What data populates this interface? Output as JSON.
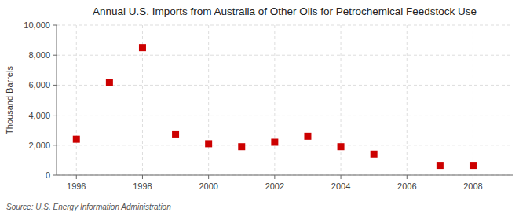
{
  "chart_data": {
    "type": "scatter",
    "title": "Annual U.S. Imports from Australia of Other Oils for Petrochemical Feedstock Use",
    "ylabel": "Thousand Barrels",
    "annotation": "Source: U.S. Energy Information Administration",
    "x": [
      1996,
      1997,
      1998,
      1999,
      2000,
      2001,
      2002,
      2003,
      2004,
      2005,
      2007,
      2008
    ],
    "values": [
      2400,
      6200,
      8500,
      2700,
      2100,
      1900,
      2200,
      2600,
      1900,
      1400,
      650,
      650
    ],
    "color": "#cc0000",
    "marker": "square",
    "xlim": [
      1995.4,
      2009.2
    ],
    "ylim": [
      0,
      10000
    ],
    "xticks": [
      1996,
      1998,
      2000,
      2002,
      2004,
      2006,
      2008
    ],
    "yticks": [
      0,
      {
        "value": 2000,
        "label": "2,000"
      },
      {
        "value": 4000,
        "label": "4,000"
      },
      {
        "value": 6000,
        "label": "6,000"
      },
      {
        "value": 8000,
        "label": "8,000"
      },
      {
        "value": 10000,
        "label": "10,000"
      }
    ],
    "grid": true
  }
}
